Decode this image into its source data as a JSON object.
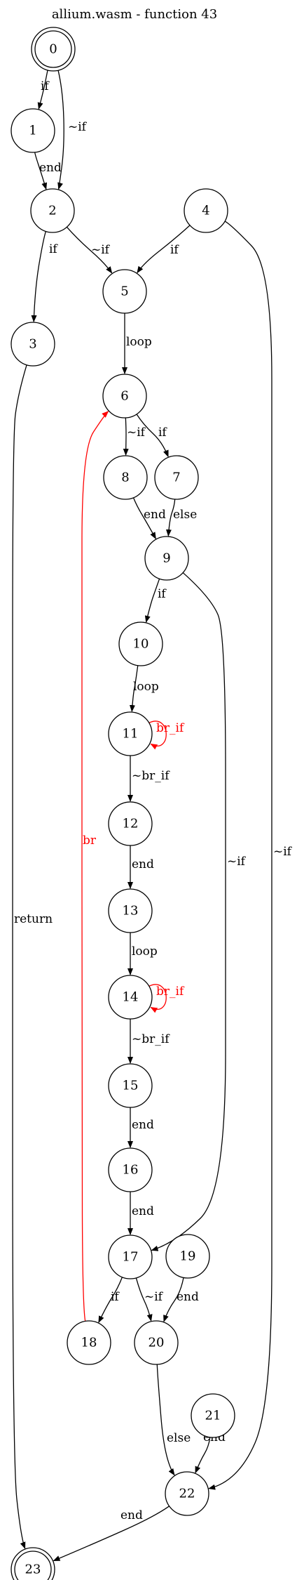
{
  "title": "allium.wasm - function 43",
  "colors": {
    "default": "#000000",
    "branch": "#ff0000"
  },
  "nodes": [
    {
      "id": "0",
      "final": true
    },
    {
      "id": "1"
    },
    {
      "id": "2"
    },
    {
      "id": "3"
    },
    {
      "id": "4"
    },
    {
      "id": "5"
    },
    {
      "id": "6"
    },
    {
      "id": "7"
    },
    {
      "id": "8"
    },
    {
      "id": "9"
    },
    {
      "id": "10"
    },
    {
      "id": "11"
    },
    {
      "id": "12"
    },
    {
      "id": "13"
    },
    {
      "id": "14"
    },
    {
      "id": "15"
    },
    {
      "id": "16"
    },
    {
      "id": "17"
    },
    {
      "id": "18"
    },
    {
      "id": "19"
    },
    {
      "id": "20"
    },
    {
      "id": "21"
    },
    {
      "id": "22"
    },
    {
      "id": "23",
      "final": true
    }
  ],
  "edges": [
    {
      "from": "0",
      "to": "1",
      "label": "if"
    },
    {
      "from": "0",
      "to": "2",
      "label": "~if"
    },
    {
      "from": "1",
      "to": "2",
      "label": "end"
    },
    {
      "from": "2",
      "to": "3",
      "label": "if"
    },
    {
      "from": "2",
      "to": "5",
      "label": "~if"
    },
    {
      "from": "4",
      "to": "5",
      "label": "if"
    },
    {
      "from": "4",
      "to": "22",
      "label": "~if"
    },
    {
      "from": "5",
      "to": "6",
      "label": "loop"
    },
    {
      "from": "3",
      "to": "23",
      "label": "return"
    },
    {
      "from": "6",
      "to": "8",
      "label": "~if"
    },
    {
      "from": "6",
      "to": "7",
      "label": "if"
    },
    {
      "from": "8",
      "to": "9",
      "label": "end"
    },
    {
      "from": "7",
      "to": "9",
      "label": "else"
    },
    {
      "from": "9",
      "to": "10",
      "label": "if"
    },
    {
      "from": "9",
      "to": "17",
      "label": "~if"
    },
    {
      "from": "10",
      "to": "11",
      "label": "loop"
    },
    {
      "from": "11",
      "to": "11",
      "label": "br_if",
      "color": "branch"
    },
    {
      "from": "11",
      "to": "12",
      "label": "~br_if"
    },
    {
      "from": "12",
      "to": "13",
      "label": "end"
    },
    {
      "from": "13",
      "to": "14",
      "label": "loop"
    },
    {
      "from": "14",
      "to": "14",
      "label": "br_if",
      "color": "branch"
    },
    {
      "from": "14",
      "to": "15",
      "label": "~br_if"
    },
    {
      "from": "15",
      "to": "16",
      "label": "end"
    },
    {
      "from": "16",
      "to": "17",
      "label": "end"
    },
    {
      "from": "17",
      "to": "18",
      "label": "if"
    },
    {
      "from": "17",
      "to": "20",
      "label": "~if"
    },
    {
      "from": "19",
      "to": "20",
      "label": "end"
    },
    {
      "from": "18",
      "to": "6",
      "label": "br",
      "color": "branch"
    },
    {
      "from": "20",
      "to": "22",
      "label": "else"
    },
    {
      "from": "21",
      "to": "22",
      "label": "end"
    },
    {
      "from": "22",
      "to": "23",
      "label": "end"
    }
  ]
}
